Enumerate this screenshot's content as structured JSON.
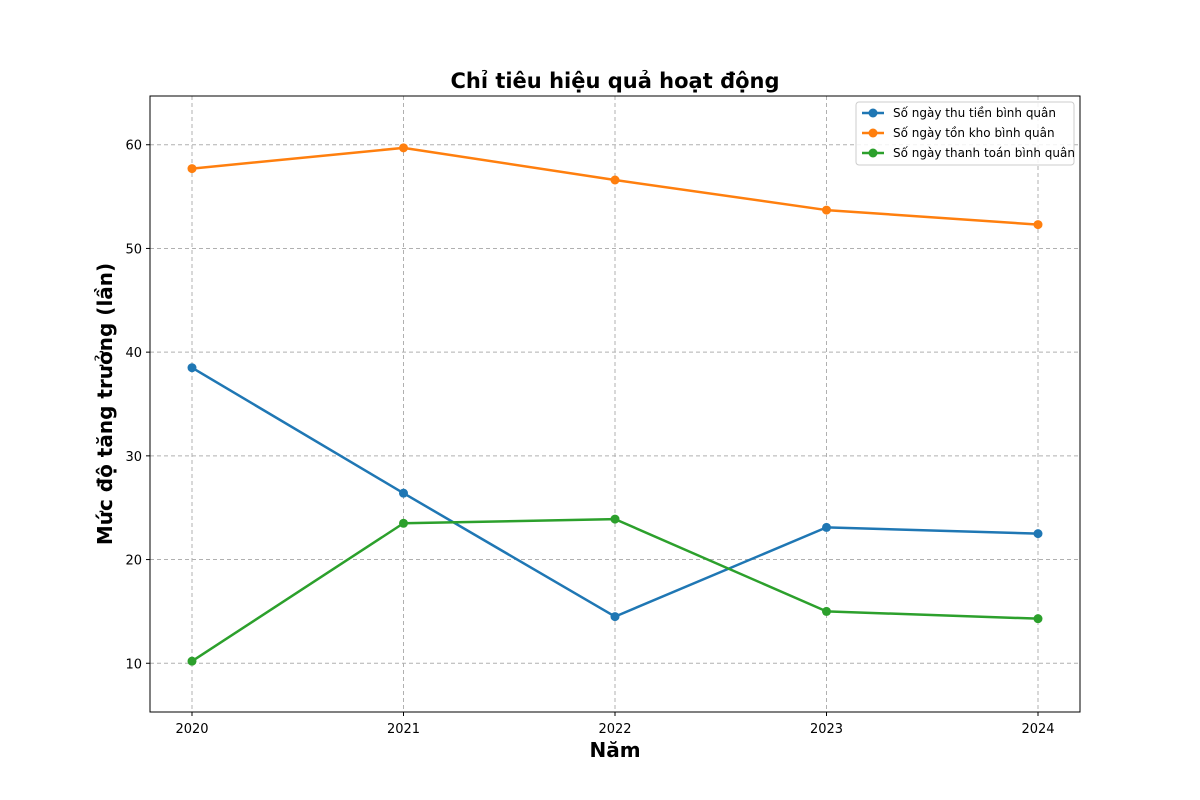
{
  "chart_data": {
    "type": "line",
    "title": "Chỉ tiêu hiệu quả hoạt động",
    "xlabel": "Năm",
    "ylabel": "Mức độ tăng trưởng (lần)",
    "x": [
      "2020",
      "2021",
      "2022",
      "2023",
      "2024"
    ],
    "ylim": [
      5.3,
      64.7
    ],
    "yticks": [
      10,
      20,
      30,
      40,
      50,
      60
    ],
    "grid": true,
    "legend_position": "top-right",
    "series": [
      {
        "name": "Số ngày thu tiền bình quân",
        "color": "#1f77b4",
        "values": [
          38.5,
          26.4,
          14.5,
          23.1,
          22.5
        ]
      },
      {
        "name": "Số ngày tồn kho bình quân",
        "color": "#ff7f0e",
        "values": [
          57.7,
          59.7,
          56.6,
          53.7,
          52.3
        ]
      },
      {
        "name": "Số ngày thanh toán bình quân",
        "color": "#2ca02c",
        "values": [
          10.2,
          23.5,
          23.9,
          15.0,
          14.3
        ]
      }
    ]
  }
}
